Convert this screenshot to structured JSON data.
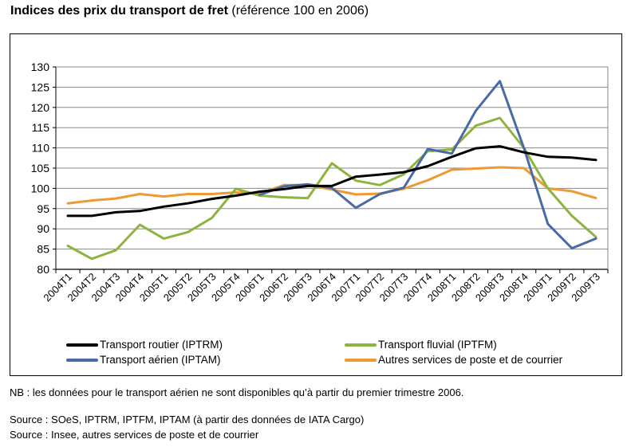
{
  "title": {
    "bold": "Indices des prix du transport de fret",
    "normal": " (référence 100 en 2006)"
  },
  "chart_data": {
    "type": "line",
    "title": "Indices des prix du transport de fret (référence 100 en 2006)",
    "xlabel": "",
    "ylabel": "",
    "ylim": [
      80,
      130
    ],
    "yticks": [
      80,
      85,
      90,
      95,
      100,
      105,
      110,
      115,
      120,
      125,
      130
    ],
    "grid": true,
    "legend_position": "bottom",
    "categories": [
      "2004T1",
      "2004T2",
      "2004T3",
      "2004T4",
      "2005T1",
      "2005T2",
      "2005T3",
      "2005T4",
      "2006T1",
      "2006T2",
      "2006T3",
      "2006T4",
      "2007T1",
      "2007T2",
      "2007T3",
      "2007T4",
      "2008T1",
      "2008T2",
      "2008T3",
      "2008T4",
      "2009T1",
      "2009T2",
      "2009T3"
    ],
    "series": [
      {
        "name": "Transport routier (IPTRM)",
        "color": "#000000",
        "values": [
          93.2,
          93.2,
          94.1,
          94.4,
          95.5,
          96.3,
          97.4,
          98.2,
          99.2,
          99.8,
          100.6,
          100.6,
          102.9,
          103.4,
          104.0,
          105.5,
          107.8,
          109.9,
          110.4,
          108.9,
          107.8,
          107.6,
          107.0
        ]
      },
      {
        "name": "Transport fluvial (IPTFM)",
        "color": "#8db43e",
        "values": [
          85.8,
          82.6,
          84.7,
          91.0,
          87.6,
          89.2,
          92.7,
          99.9,
          98.2,
          97.8,
          97.6,
          106.2,
          101.9,
          100.8,
          103.5,
          109.2,
          109.6,
          115.5,
          117.4,
          110.0,
          100.0,
          93.2,
          88.0
        ]
      },
      {
        "name": "Transport aérien (IPTAM)",
        "color": "#4a6aa5",
        "values": [
          null,
          null,
          null,
          null,
          null,
          null,
          null,
          null,
          98.4,
          100.5,
          101.0,
          100.1,
          95.2,
          98.6,
          100.2,
          109.7,
          108.6,
          119.2,
          126.5,
          110.0,
          91.2,
          85.2,
          87.6
        ]
      },
      {
        "name": "Autres services de poste et de courrier",
        "color": "#ee9a32",
        "values": [
          96.3,
          97.0,
          97.5,
          98.6,
          98.0,
          98.6,
          98.6,
          99.0,
          98.7,
          100.8,
          100.8,
          99.7,
          98.5,
          98.7,
          99.9,
          102.0,
          104.6,
          104.9,
          105.2,
          105.0,
          100.0,
          99.3,
          97.6
        ]
      }
    ]
  },
  "legend": [
    {
      "label": "Transport routier (IPTRM)",
      "color": "#000000"
    },
    {
      "label": "Transport fluvial (IPTFM)",
      "color": "#8db43e"
    },
    {
      "label": "Transport aérien (IPTAM)",
      "color": "#4a6aa5"
    },
    {
      "label": "Autres services de poste et de courrier",
      "color": "#ee9a32"
    }
  ],
  "notes": {
    "nb": "NB :  les données pour le transport aérien ne sont disponibles qu’à partir du premier trimestre 2006.",
    "source1": "Source : SOeS, IPTRM, IPTFM, IPTAM (à partir des données de IATA Cargo)",
    "source2": "Source : Insee, autres services de poste et de courrier"
  }
}
